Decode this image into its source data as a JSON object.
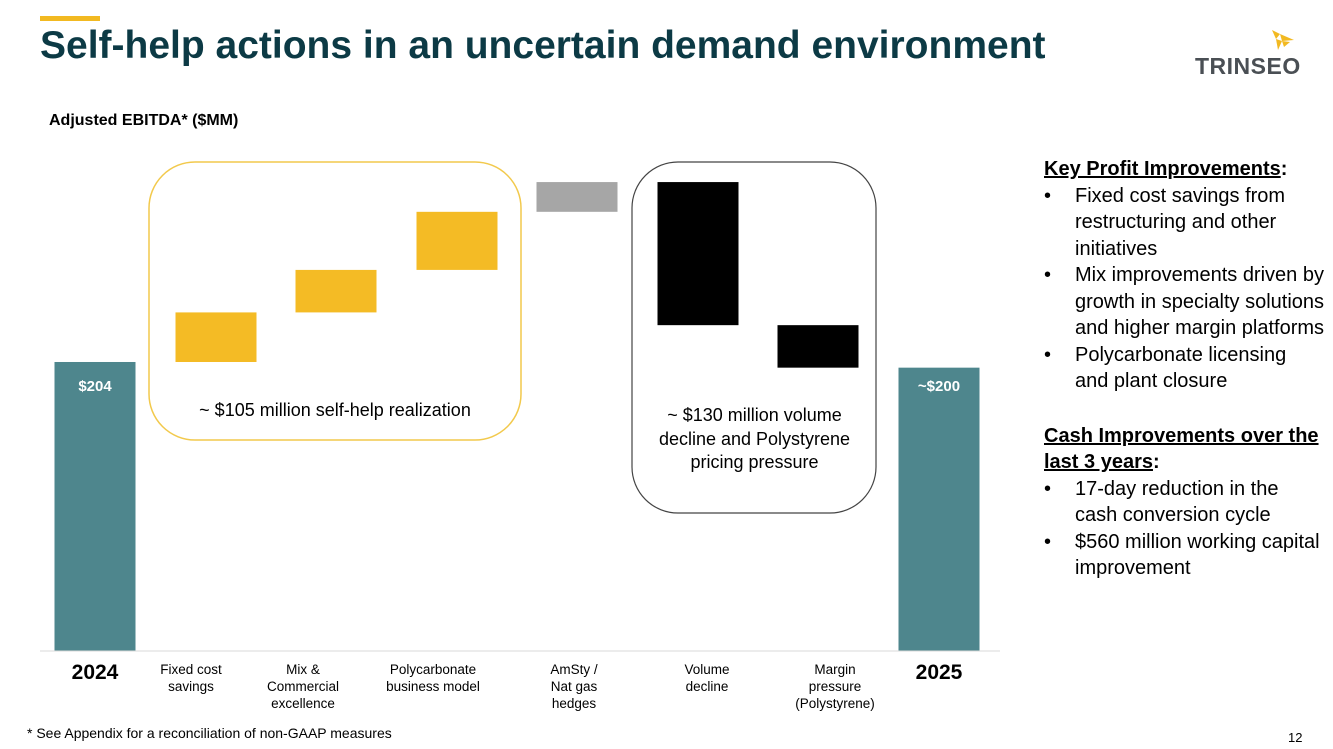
{
  "slide": {
    "title": "Self-help actions in an uncertain demand environment",
    "subtitle": "Adjusted EBITDA* ($MM)",
    "footnote": "* See Appendix for a reconciliation of non-GAAP measures",
    "page_number": "12"
  },
  "logo": {
    "text": "TRINSEO"
  },
  "colors": {
    "accent": "#f2b921",
    "title": "#0c3a45",
    "total_bar": "#4e868d",
    "improvement_bar": "#f4bb25",
    "neutral_bar": "#a6a6a6",
    "decline_bar": "#000000"
  },
  "chart_data": {
    "type": "waterfall",
    "title": "Adjusted EBITDA* ($MM)",
    "ylim": [
      0,
      300
    ],
    "categories": [
      "2024",
      "Fixed cost\nsavings",
      "Mix &\nCommercial\nexcellence",
      "Polycarbonate\nbusiness model",
      "AmSty /\nNat gas\nhedges",
      "Volume\ndecline",
      "Margin\npressure\n(Polystyrene)",
      "2025"
    ],
    "bars": [
      {
        "name": "2024",
        "kind": "total",
        "start": 0,
        "end": 204,
        "label": "$204"
      },
      {
        "name": "Fixed cost savings",
        "kind": "improvement",
        "start": 204,
        "end": 239
      },
      {
        "name": "Mix & Commercial excellence",
        "kind": "improvement",
        "start": 239,
        "end": 269
      },
      {
        "name": "Polycarbonate business model",
        "kind": "improvement",
        "start": 269,
        "end": 310
      },
      {
        "name": "AmSty / Nat gas hedges",
        "kind": "neutral",
        "start": 310,
        "end": 331
      },
      {
        "name": "Volume decline",
        "kind": "decline",
        "start": 331,
        "end": 230
      },
      {
        "name": "Margin pressure (Polystyrene)",
        "kind": "decline",
        "start": 230,
        "end": 200
      },
      {
        "name": "2025",
        "kind": "total",
        "start": 0,
        "end": 200,
        "label": "~$200"
      }
    ],
    "annotations": [
      "~ $105 million self-help realization",
      "~ $130 million volume decline and Polystyrene pricing pressure"
    ]
  },
  "sidebar": {
    "profit_heading": "Key Profit Improvements",
    "profit_items": [
      "Fixed cost savings from restructuring and other initiatives",
      "Mix improvements driven by growth in specialty solutions and higher margin platforms",
      "Polycarbonate licensing and plant closure"
    ],
    "cash_heading": "Cash Improvements over the last 3 years",
    "cash_items": [
      "17-day reduction in the cash conversion cycle",
      "$560 million working capital improvement"
    ]
  }
}
